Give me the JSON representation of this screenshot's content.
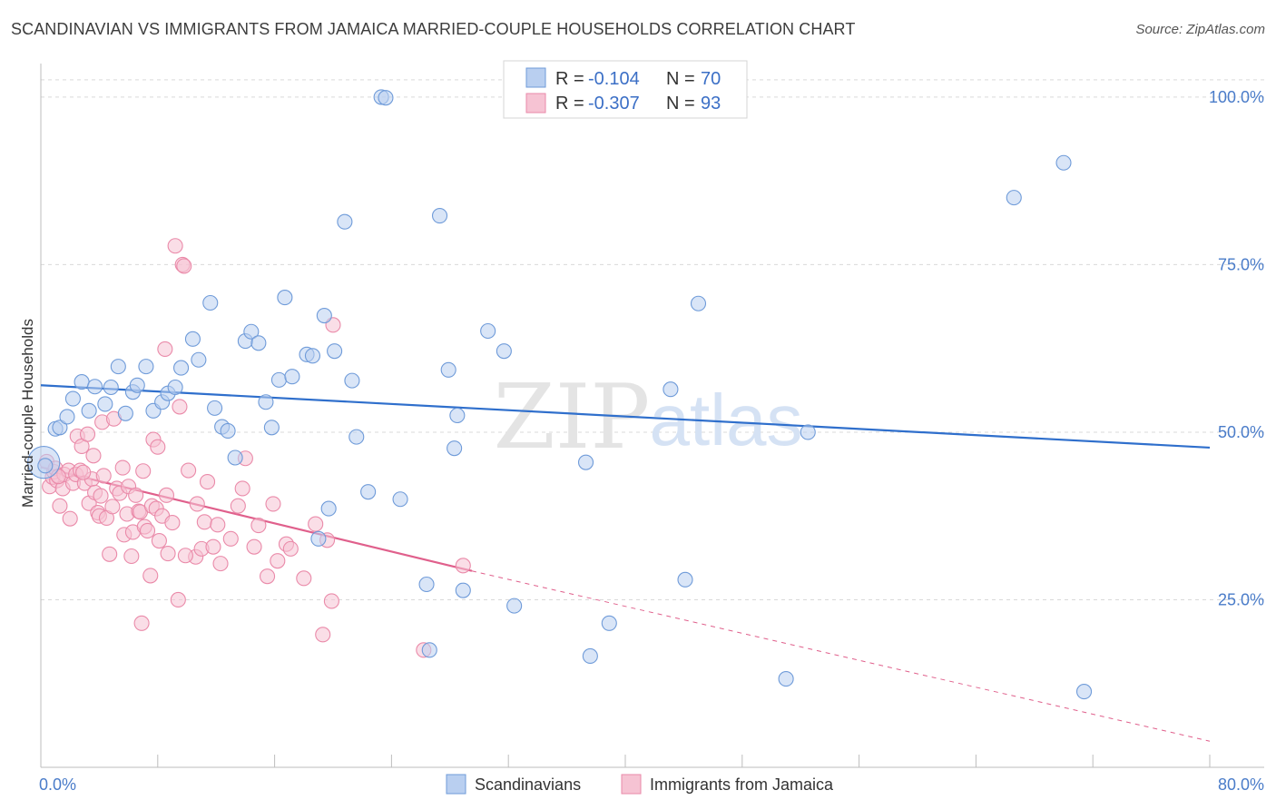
{
  "title": "SCANDINAVIAN VS IMMIGRANTS FROM JAMAICA MARRIED-COUPLE HOUSEHOLDS CORRELATION CHART",
  "source": "Source: ZipAtlas.com",
  "watermark": {
    "zip": "ZIP",
    "atlas": "atlas"
  },
  "colors": {
    "blue_fill": "#b9cff0",
    "blue_stroke": "#6f9bd9",
    "blue_line": "#2f6fcc",
    "pink_fill": "#f6c3d3",
    "pink_stroke": "#ea8aa9",
    "pink_line": "#e0608c",
    "axis_text": "#4a7cc9",
    "grid": "#d9d9d9"
  },
  "legend_top": [
    {
      "r_label": "R = ",
      "r_value": "-0.104",
      "n_label": "N = ",
      "n_value": "70",
      "series": "blue"
    },
    {
      "r_label": "R = ",
      "r_value": "-0.307",
      "n_label": "N = ",
      "n_value": "93",
      "series": "pink"
    }
  ],
  "chart_data": {
    "type": "scatter",
    "title": "SCANDINAVIAN VS IMMIGRANTS FROM JAMAICA MARRIED-COUPLE HOUSEHOLDS CORRELATION CHART",
    "xlabel": "",
    "ylabel": "Married-couple Households",
    "xlim": [
      0,
      80
    ],
    "ylim": [
      0,
      105
    ],
    "x_tick_labels": [
      "0.0%",
      "80.0%"
    ],
    "y_ticks": [
      25,
      50,
      75,
      100
    ],
    "y_tick_labels": [
      "25.0%",
      "50.0%",
      "75.0%",
      "100.0%"
    ],
    "grid": true,
    "legend_position": "bottom",
    "series": [
      {
        "name": "Scandinavians",
        "color": "blue",
        "R": -0.104,
        "N": 70,
        "trend": {
          "x0": 0,
          "y0": 57.0,
          "x1": 80,
          "y1": 47.7
        },
        "points": [
          [
            0.2,
            45.5
          ],
          [
            1.0,
            50.5
          ],
          [
            1.3,
            50.7
          ],
          [
            1.8,
            52.3
          ],
          [
            2.2,
            55.0
          ],
          [
            2.8,
            57.5
          ],
          [
            3.3,
            53.2
          ],
          [
            3.7,
            56.8
          ],
          [
            4.4,
            54.2
          ],
          [
            4.8,
            56.7
          ],
          [
            5.3,
            59.8
          ],
          [
            5.8,
            52.8
          ],
          [
            6.3,
            56.0
          ],
          [
            6.6,
            57.0
          ],
          [
            7.2,
            59.8
          ],
          [
            7.7,
            53.2
          ],
          [
            8.3,
            54.5
          ],
          [
            8.7,
            55.8
          ],
          [
            9.2,
            56.7
          ],
          [
            9.6,
            59.6
          ],
          [
            10.4,
            63.9
          ],
          [
            10.8,
            60.8
          ],
          [
            11.6,
            69.3
          ],
          [
            11.9,
            53.6
          ],
          [
            12.4,
            50.8
          ],
          [
            12.8,
            50.2
          ],
          [
            13.3,
            46.2
          ],
          [
            14.0,
            63.6
          ],
          [
            14.4,
            65.0
          ],
          [
            14.9,
            63.3
          ],
          [
            15.4,
            54.5
          ],
          [
            15.8,
            50.7
          ],
          [
            16.3,
            57.8
          ],
          [
            16.7,
            70.1
          ],
          [
            17.2,
            58.3
          ],
          [
            18.2,
            61.6
          ],
          [
            18.6,
            61.4
          ],
          [
            19.0,
            34.1
          ],
          [
            19.4,
            67.4
          ],
          [
            19.7,
            38.6
          ],
          [
            20.1,
            62.1
          ],
          [
            20.8,
            81.4
          ],
          [
            21.3,
            57.7
          ],
          [
            21.6,
            49.3
          ],
          [
            22.4,
            41.1
          ],
          [
            23.3,
            100.0
          ],
          [
            23.6,
            99.9
          ],
          [
            24.6,
            40.0
          ],
          [
            26.4,
            27.3
          ],
          [
            26.6,
            17.5
          ],
          [
            27.3,
            82.3
          ],
          [
            27.9,
            59.3
          ],
          [
            28.3,
            47.6
          ],
          [
            28.5,
            52.5
          ],
          [
            28.9,
            26.4
          ],
          [
            30.6,
            65.1
          ],
          [
            31.7,
            62.1
          ],
          [
            32.4,
            24.1
          ],
          [
            37.3,
            45.5
          ],
          [
            37.6,
            16.6
          ],
          [
            38.9,
            21.5
          ],
          [
            43.1,
            56.4
          ],
          [
            44.1,
            28.0
          ],
          [
            45.0,
            69.2
          ],
          [
            51.0,
            13.2
          ],
          [
            52.5,
            50.0
          ],
          [
            66.6,
            85.0
          ],
          [
            70.0,
            90.2
          ],
          [
            71.4,
            11.3
          ],
          [
            0.3,
            45.0
          ]
        ],
        "point_sizes": [
          2.2,
          1,
          1,
          1,
          1,
          1,
          1,
          1,
          1,
          1,
          1,
          1,
          1,
          1,
          1,
          1,
          1,
          1,
          1,
          1,
          1,
          1,
          1,
          1,
          1,
          1,
          1,
          1,
          1,
          1,
          1,
          1,
          1,
          1,
          1,
          1,
          1,
          1,
          1,
          1,
          1,
          1,
          1,
          1,
          1,
          1,
          1,
          1,
          1,
          1,
          1,
          1,
          1,
          1,
          1,
          1,
          1,
          1,
          1,
          1,
          1,
          1,
          1,
          1,
          1,
          1,
          1,
          1,
          1,
          1
        ]
      },
      {
        "name": "Immigrants from Jamaica",
        "color": "pink",
        "R": -0.307,
        "N": 93,
        "trend": {
          "x0": 0,
          "y0": 44.8,
          "x1": 29.5,
          "y1": 29.3
        },
        "trend_dashed": {
          "x0": 29.5,
          "y0": 29.3,
          "x1": 80,
          "y1": 3.9
        },
        "points": [
          [
            0.4,
            45.6
          ],
          [
            0.6,
            41.9
          ],
          [
            0.8,
            43.3
          ],
          [
            0.9,
            44.1
          ],
          [
            1.0,
            44.6
          ],
          [
            1.1,
            42.8
          ],
          [
            1.3,
            39.0
          ],
          [
            1.5,
            41.6
          ],
          [
            1.6,
            43.7
          ],
          [
            1.9,
            44.3
          ],
          [
            2.0,
            37.1
          ],
          [
            2.2,
            42.4
          ],
          [
            2.4,
            43.7
          ],
          [
            2.5,
            49.4
          ],
          [
            2.7,
            44.3
          ],
          [
            2.8,
            47.9
          ],
          [
            3.0,
            42.4
          ],
          [
            3.2,
            49.7
          ],
          [
            3.3,
            39.4
          ],
          [
            3.5,
            43.0
          ],
          [
            3.6,
            46.5
          ],
          [
            3.7,
            41.0
          ],
          [
            3.9,
            38.0
          ],
          [
            4.0,
            37.5
          ],
          [
            4.2,
            51.5
          ],
          [
            4.3,
            43.5
          ],
          [
            4.5,
            37.2
          ],
          [
            4.7,
            31.8
          ],
          [
            4.9,
            38.9
          ],
          [
            5.0,
            52.0
          ],
          [
            5.2,
            41.6
          ],
          [
            5.4,
            40.9
          ],
          [
            5.6,
            44.7
          ],
          [
            5.7,
            34.7
          ],
          [
            5.9,
            37.8
          ],
          [
            6.0,
            41.9
          ],
          [
            6.2,
            31.5
          ],
          [
            6.3,
            35.1
          ],
          [
            6.5,
            40.6
          ],
          [
            6.7,
            38.2
          ],
          [
            6.8,
            38.1
          ],
          [
            7.0,
            44.2
          ],
          [
            7.1,
            35.9
          ],
          [
            7.3,
            35.3
          ],
          [
            7.5,
            28.6
          ],
          [
            7.6,
            39.0
          ],
          [
            7.7,
            48.9
          ],
          [
            7.9,
            38.6
          ],
          [
            8.0,
            47.8
          ],
          [
            8.1,
            33.8
          ],
          [
            8.3,
            37.5
          ],
          [
            8.5,
            62.4
          ],
          [
            8.6,
            40.6
          ],
          [
            8.7,
            31.9
          ],
          [
            9.0,
            36.5
          ],
          [
            9.2,
            77.8
          ],
          [
            9.4,
            25.0
          ],
          [
            9.5,
            53.8
          ],
          [
            9.7,
            75.0
          ],
          [
            9.8,
            74.8
          ],
          [
            10.1,
            44.3
          ],
          [
            10.6,
            31.4
          ],
          [
            10.7,
            39.3
          ],
          [
            11.0,
            32.6
          ],
          [
            11.2,
            36.6
          ],
          [
            11.4,
            42.6
          ],
          [
            11.8,
            32.9
          ],
          [
            12.1,
            36.2
          ],
          [
            12.3,
            30.4
          ],
          [
            13.0,
            34.1
          ],
          [
            13.5,
            39.0
          ],
          [
            13.8,
            41.6
          ],
          [
            14.0,
            46.1
          ],
          [
            14.6,
            32.9
          ],
          [
            14.9,
            36.1
          ],
          [
            15.5,
            28.5
          ],
          [
            15.9,
            39.3
          ],
          [
            16.2,
            30.8
          ],
          [
            16.8,
            33.3
          ],
          [
            17.1,
            32.6
          ],
          [
            18.0,
            28.2
          ],
          [
            18.8,
            36.3
          ],
          [
            19.3,
            19.8
          ],
          [
            19.6,
            33.9
          ],
          [
            19.9,
            24.8
          ],
          [
            20.0,
            66.0
          ],
          [
            26.2,
            17.5
          ],
          [
            28.9,
            30.1
          ],
          [
            1.2,
            43.4
          ],
          [
            2.9,
            44.0
          ],
          [
            4.1,
            40.5
          ],
          [
            6.9,
            21.5
          ],
          [
            9.9,
            31.6
          ]
        ]
      }
    ]
  },
  "bottom_legend": [
    "Scandinavians",
    "Immigrants from Jamaica"
  ]
}
